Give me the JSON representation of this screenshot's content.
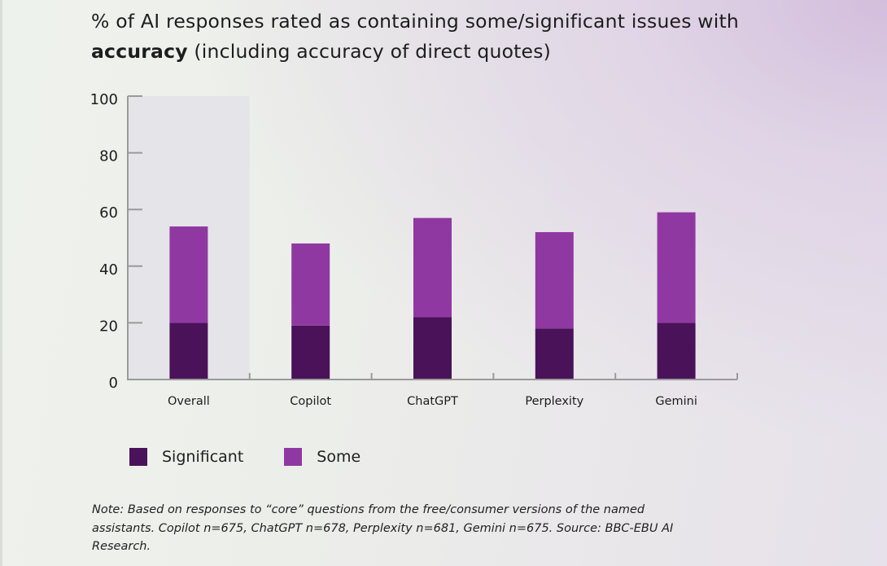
{
  "title": {
    "prefix": "% of AI responses rated as containing some/significant issues with ",
    "bold": "accuracy",
    "suffix": " (including accuracy of direct quotes)"
  },
  "chart_data": {
    "type": "bar",
    "stacked": true,
    "categories": [
      "Overall",
      "Copilot",
      "ChatGPT",
      "Perplexity",
      "Gemini"
    ],
    "highlighted_category": "Overall",
    "series": [
      {
        "name": "Significant",
        "values": [
          20,
          19,
          22,
          18,
          20
        ],
        "color": "#4a1259"
      },
      {
        "name": "Some",
        "values": [
          34,
          29,
          35,
          34,
          39
        ],
        "color": "#9038a2"
      }
    ],
    "ylim": [
      0,
      100
    ],
    "yticks": [
      0,
      20,
      40,
      60,
      80,
      100
    ],
    "xlabel": "",
    "ylabel": "",
    "grid": false,
    "legend_position": "bottom-left",
    "highlight_color": "#e5e4e8",
    "axis_color": "#9a9a9a"
  },
  "legend": {
    "items": [
      {
        "label": "Significant",
        "color": "#4a1259"
      },
      {
        "label": "Some",
        "color": "#9038a2"
      }
    ]
  },
  "note": "Note: Based on responses to “core” questions from the free/consumer versions of the named assistants. Copilot n=675, ChatGPT n=678, Perplexity n=681, Gemini n=675. Source: BBC-EBU AI Research."
}
